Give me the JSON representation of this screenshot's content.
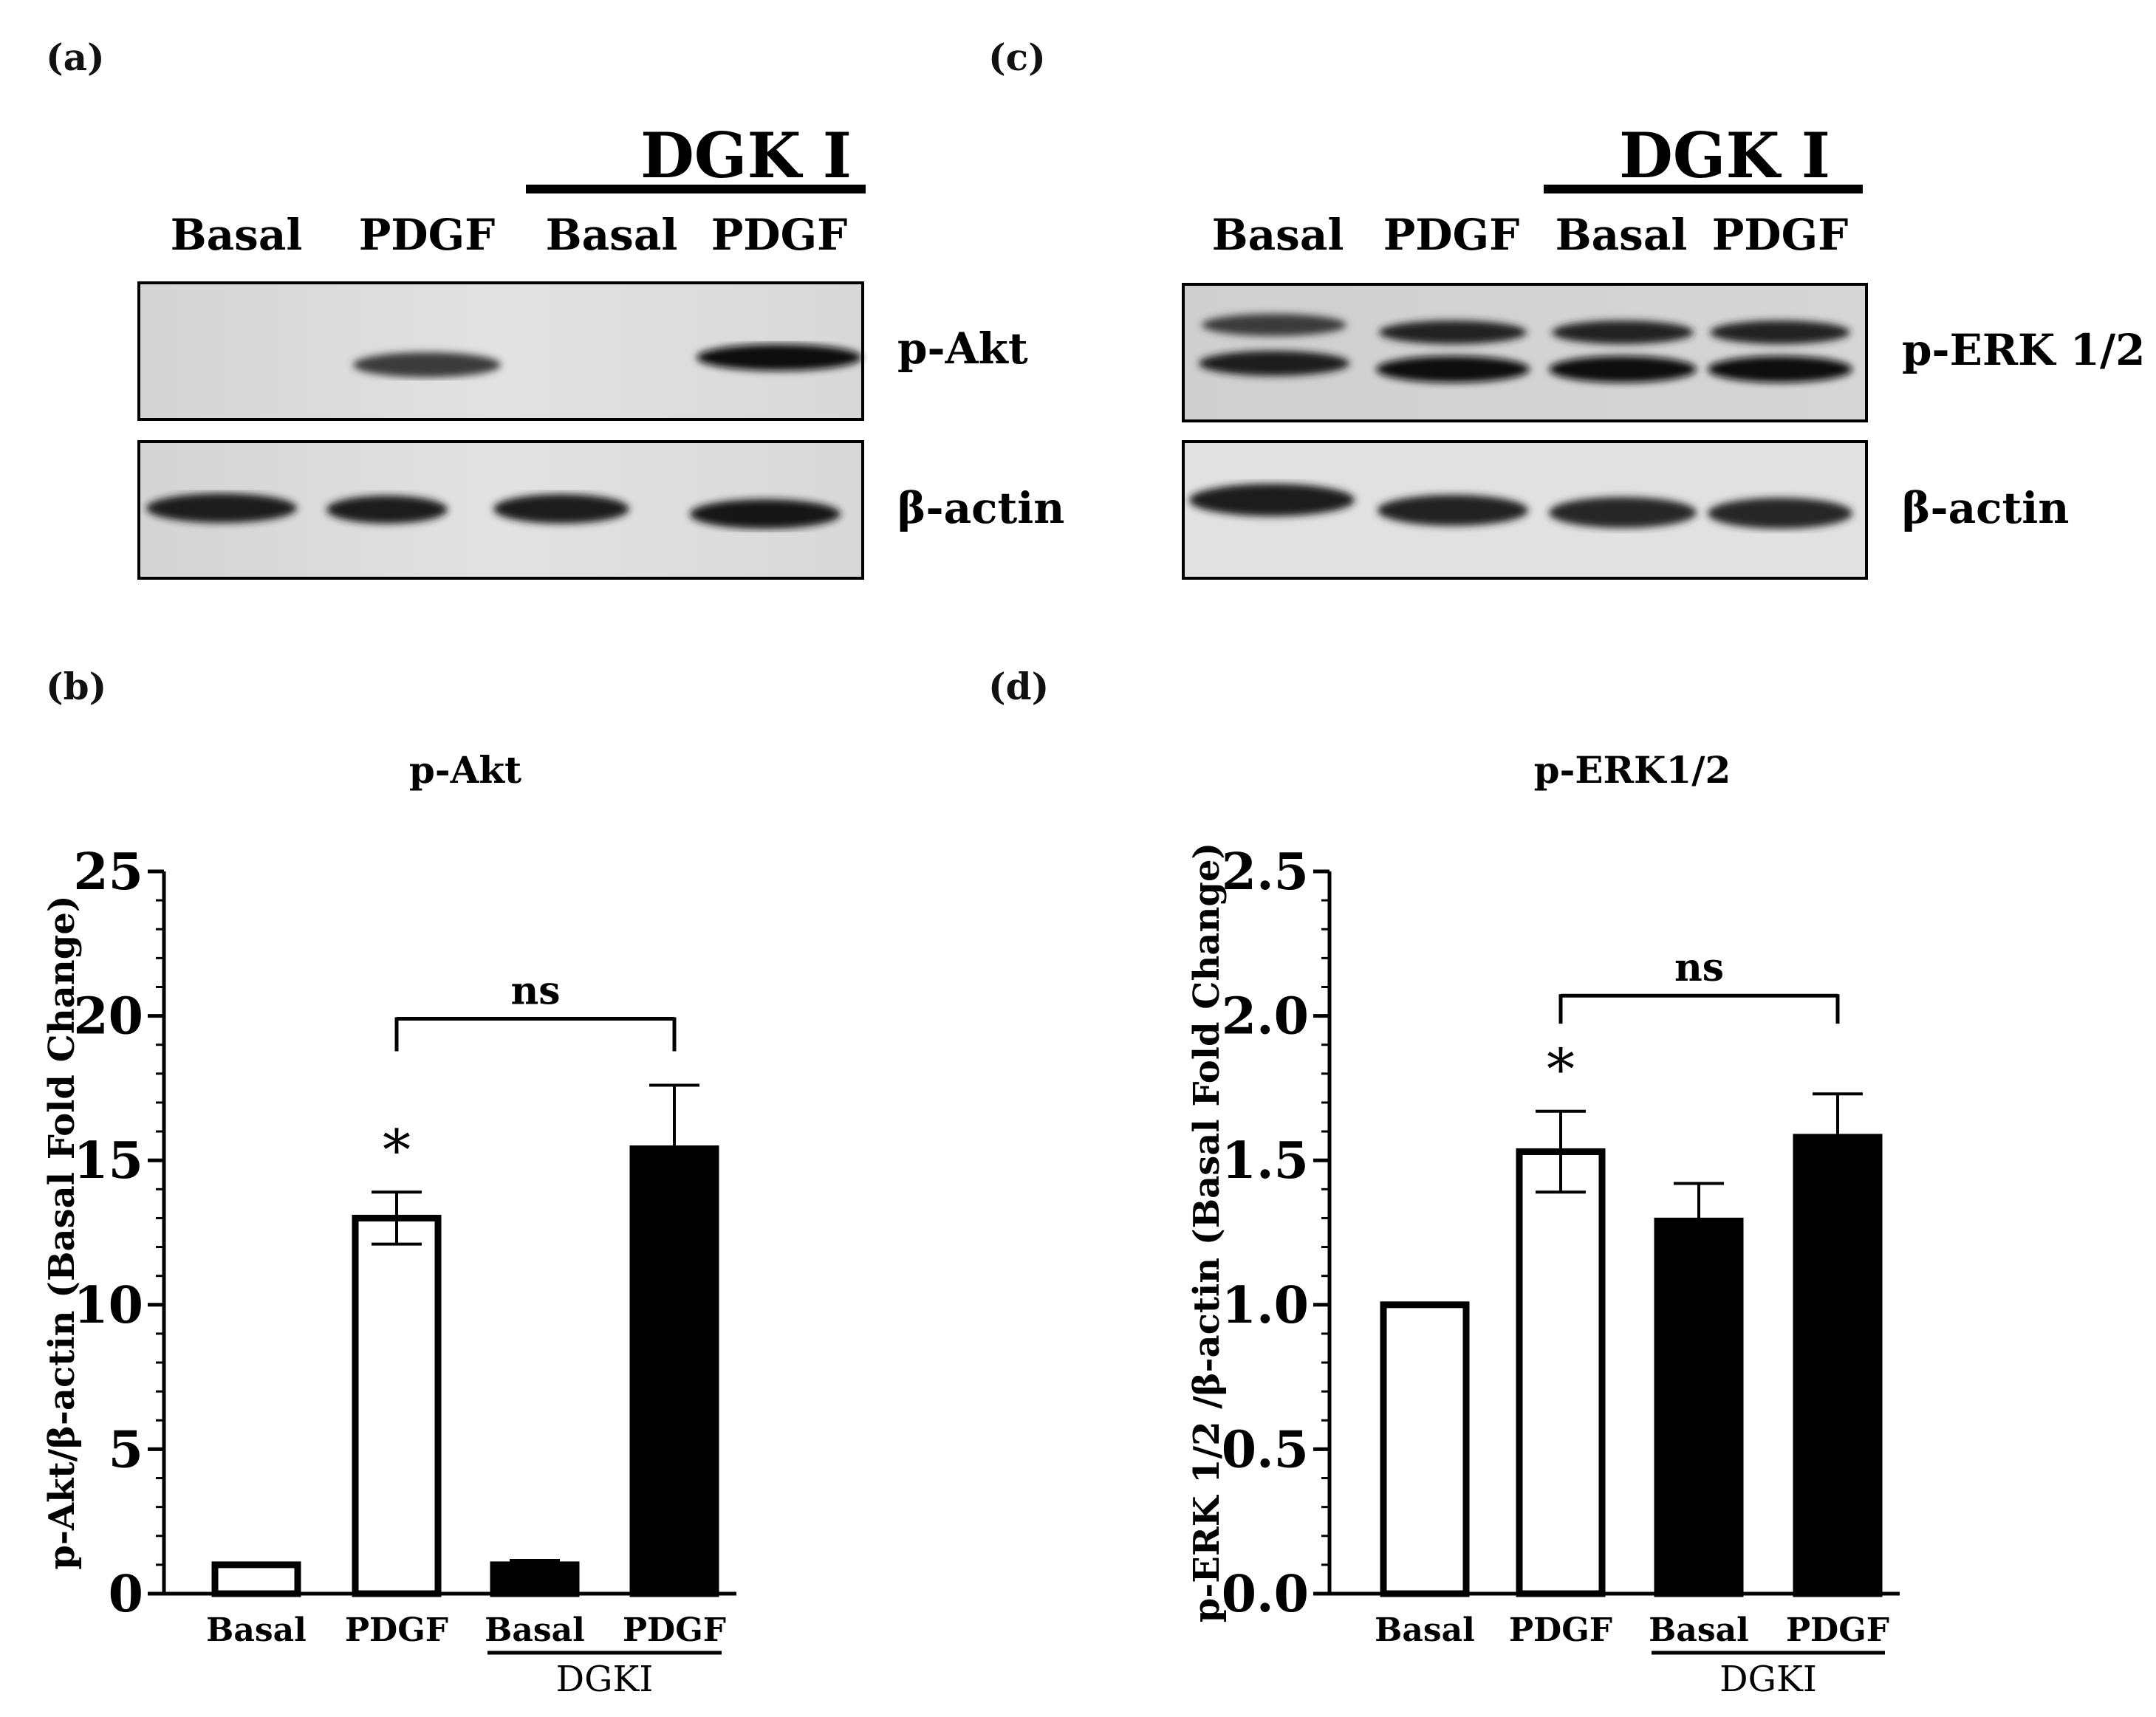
{
  "panels": {
    "a": "(a)",
    "b": "(b)",
    "c": "(c)",
    "d": "(d)"
  },
  "blot_a": {
    "treatment_label": "DGK I",
    "lanes": [
      "Basal",
      "PDGF",
      "Basal",
      "PDGF"
    ],
    "row_labels": [
      "p-Akt",
      "β-actin"
    ]
  },
  "blot_c": {
    "treatment_label": "DGK I",
    "lanes": [
      "Basal",
      "PDGF",
      "Basal",
      "PDGF"
    ],
    "row_labels": [
      "p-ERK 1/2",
      "β-actin"
    ]
  },
  "chart_data": [
    {
      "type": "bar",
      "title": "p-Akt",
      "ylabel": "p-Akt/β-actin (Basal Fold Change)",
      "xlabel": "",
      "categories": [
        "Basal",
        "PDGF",
        "Basal",
        "PDGF"
      ],
      "group_label": "DGKI",
      "values": [
        1.0,
        13.0,
        1.0,
        15.4
      ],
      "errors": [
        0,
        0.9,
        0.15,
        2.2
      ],
      "fills": [
        "#ffffff",
        "#ffffff",
        "#000000",
        "#000000"
      ],
      "ylim": [
        0,
        25
      ],
      "yticks": [
        "0",
        "5",
        "10",
        "15",
        "20",
        "25"
      ],
      "grid": false,
      "annotations": {
        "significance": "*",
        "comparison": "ns"
      }
    },
    {
      "type": "bar",
      "title": "p-ERK1/2",
      "ylabel": "p-ERK 1/2 /β-actin (Basal Fold Change)",
      "xlabel": "",
      "categories": [
        "Basal",
        "PDGF",
        "Basal",
        "PDGF"
      ],
      "group_label": "DGKI",
      "values": [
        1.0,
        1.53,
        1.29,
        1.58
      ],
      "errors": [
        0,
        0.14,
        0.13,
        0.15
      ],
      "fills": [
        "#ffffff",
        "#ffffff",
        "#000000",
        "#000000"
      ],
      "ylim": [
        0,
        2.5
      ],
      "yticks": [
        "0.0",
        "0.5",
        "1.0",
        "1.5",
        "2.0",
        "2.5"
      ],
      "grid": false,
      "annotations": {
        "significance": "*",
        "comparison": "ns"
      }
    }
  ]
}
